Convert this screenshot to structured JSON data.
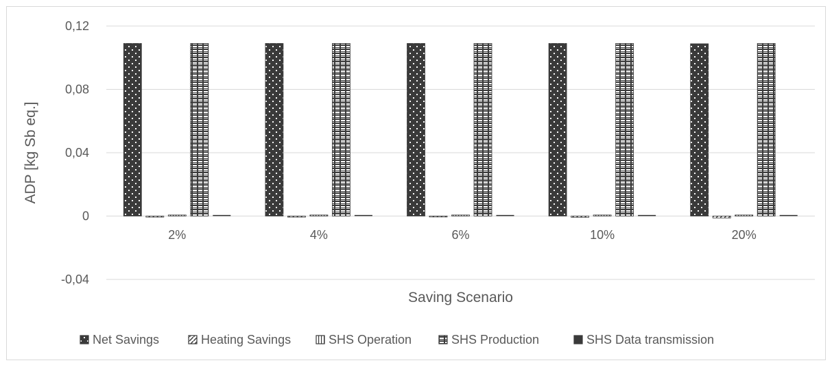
{
  "chart_data": {
    "type": "bar",
    "title": "",
    "xlabel": "Saving Scenario",
    "ylabel": "ADP [kg Sb eq.]",
    "ylim": [
      -0.04,
      0.12
    ],
    "yticks": [
      -0.04,
      0,
      0.04,
      0.08,
      0.12
    ],
    "ytick_labels": [
      "-0,04",
      "0",
      "0,04",
      "0,08",
      "0,12"
    ],
    "grid": true,
    "legend_position": "bottom",
    "categories": [
      "2%",
      "4%",
      "6%",
      "10%",
      "20%"
    ],
    "series": [
      {
        "name": "Net Savings",
        "values": [
          0.109,
          0.109,
          0.109,
          0.109,
          0.1088
        ],
        "pattern": "dots",
        "color": "#3a3a3a"
      },
      {
        "name": "Heating Savings",
        "values": [
          -0.0004,
          -0.0005,
          -0.0006,
          -0.0008,
          -0.0012
        ],
        "pattern": "diagonal",
        "color": "#3a3a3a"
      },
      {
        "name": "SHS Operation",
        "values": [
          0.0003,
          0.0003,
          0.0003,
          0.0003,
          0.0003
        ],
        "pattern": "vertical",
        "color": "#3a3a3a"
      },
      {
        "name": "SHS Production",
        "values": [
          0.109,
          0.109,
          0.109,
          0.109,
          0.109
        ],
        "pattern": "bricks",
        "color": "#3a3a3a"
      },
      {
        "name": "SHS Data transmission",
        "values": [
          2e-05,
          2e-05,
          2e-05,
          2e-05,
          2e-05
        ],
        "pattern": "solid",
        "color": "#3a3a3a"
      }
    ]
  }
}
